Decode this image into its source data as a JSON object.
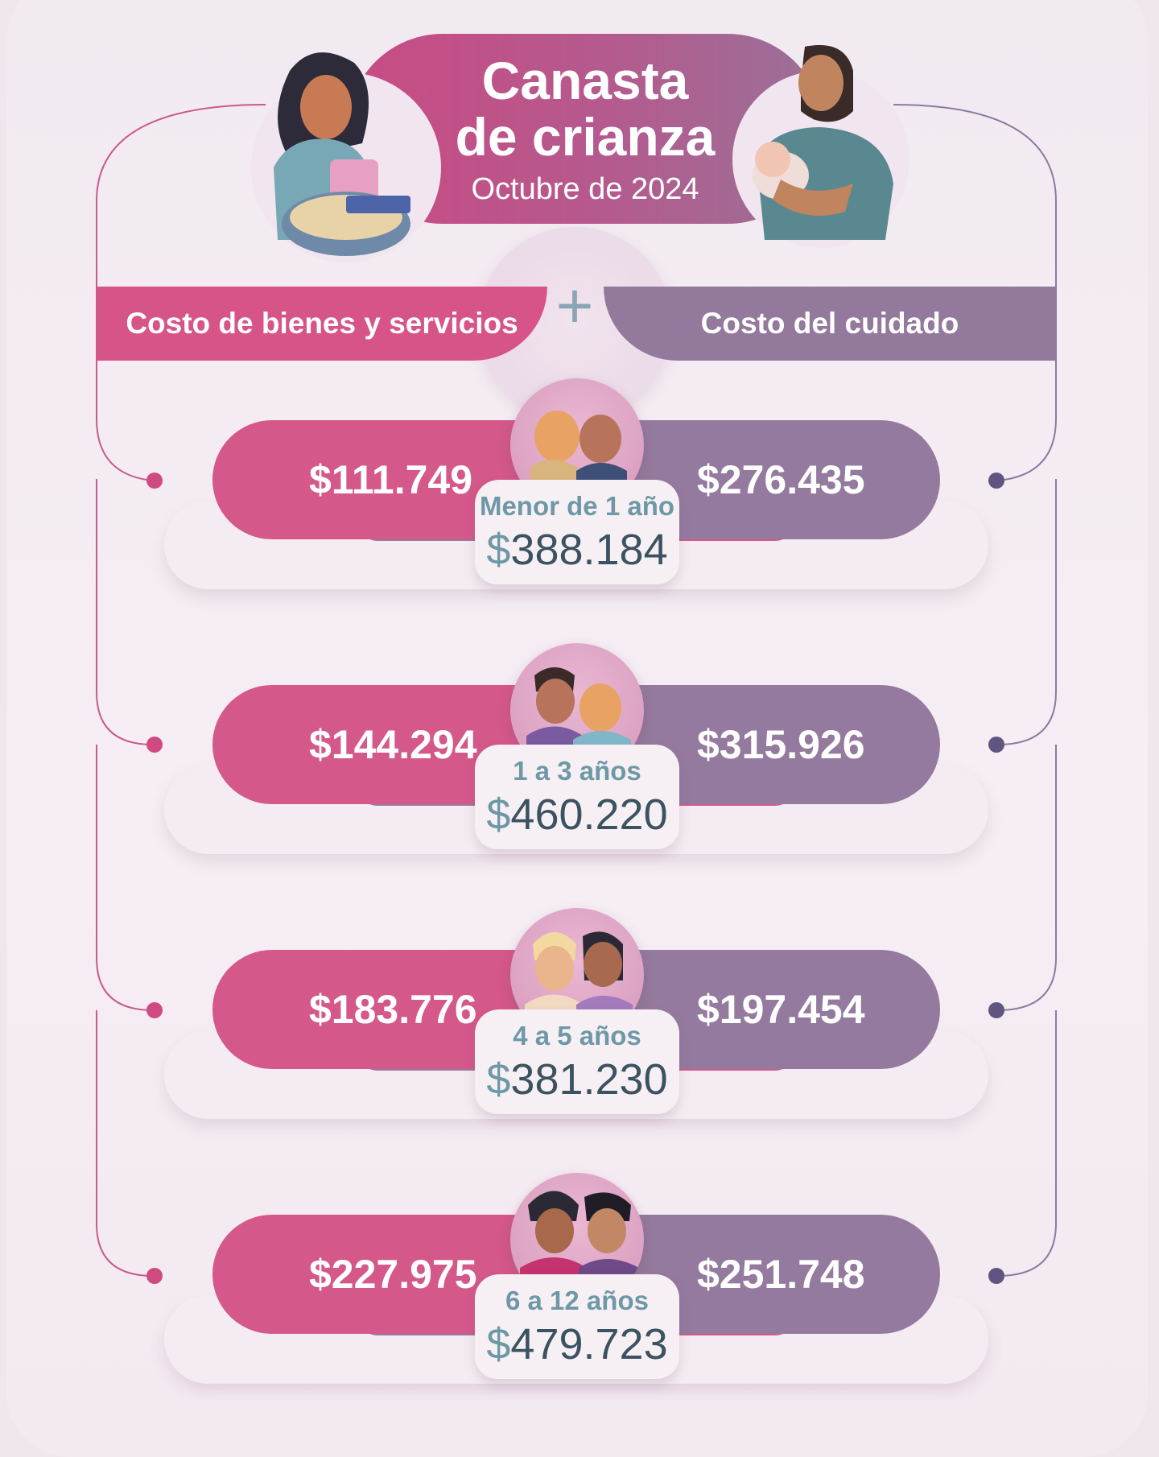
{
  "title": {
    "line1": "Canasta",
    "line2": "de crianza",
    "subtitle": "Octubre de 2024"
  },
  "headers": {
    "left": "Costo de bienes y servicios",
    "plus": "+",
    "right": "Costo del cuidado"
  },
  "colors": {
    "pink": "#d4588a",
    "purple": "#947a9e",
    "teal": "#6e98a6",
    "background": "#efe6ee"
  },
  "rows": [
    {
      "left": "$111.749",
      "right": "$276.435",
      "age": "Menor de 1 año",
      "currency": "$",
      "total": "388.184"
    },
    {
      "left": "$144.294",
      "right": "$315.926",
      "age": "1 a 3 años",
      "currency": "$",
      "total": "460.220"
    },
    {
      "left": "$183.776",
      "right": "$197.454",
      "age": "4 a 5 años",
      "currency": "$",
      "total": "381.230"
    },
    {
      "left": "$227.975",
      "right": "$251.748",
      "age": "6 a 12 años",
      "currency": "$",
      "total": "479.723"
    }
  ],
  "icons": {
    "mother": "mother-with-basket-illustration",
    "father": "father-with-baby-illustration",
    "children": [
      "babies-avatar-icon",
      "toddlers-avatar-icon",
      "preschoolers-avatar-icon",
      "schoolchildren-avatar-icon"
    ]
  }
}
